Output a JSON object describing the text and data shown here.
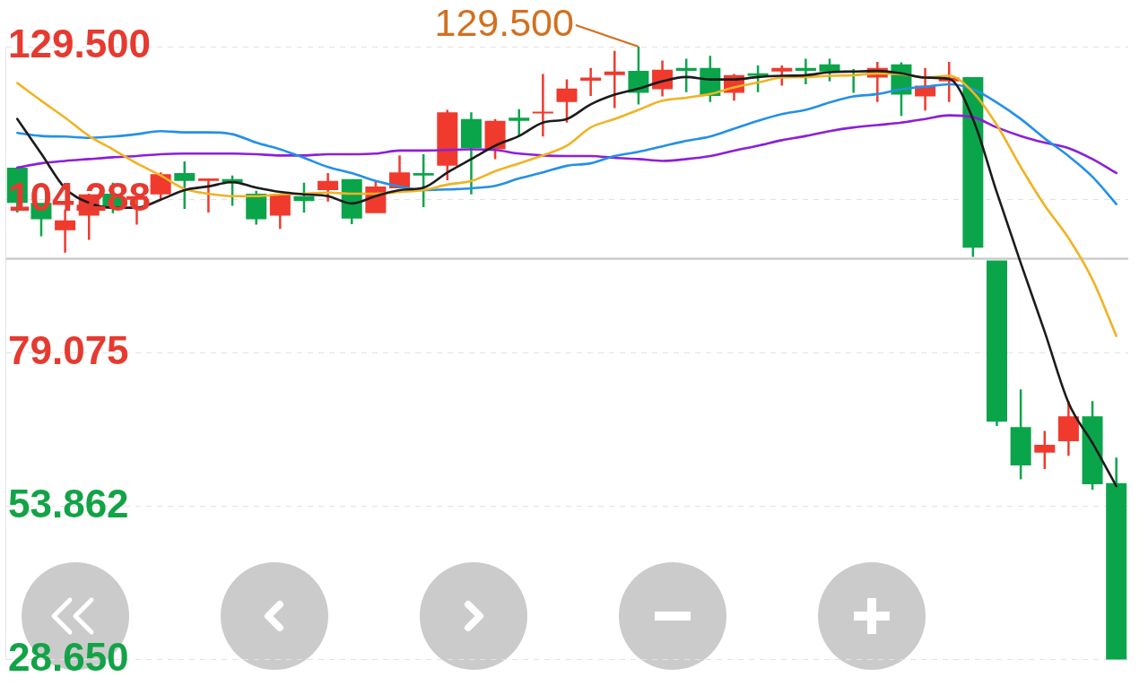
{
  "chart_data": {
    "type": "candlestick",
    "categories": [
      null,
      null,
      null,
      null,
      null,
      null,
      null,
      null,
      null,
      null,
      null,
      null,
      null,
      null,
      null,
      null,
      null,
      null,
      null,
      null,
      null,
      null,
      null,
      null,
      null,
      null,
      null,
      null,
      null,
      null,
      null,
      null,
      null,
      null,
      null,
      null,
      null,
      null,
      null,
      null,
      null,
      null,
      null,
      null,
      null,
      null,
      null
    ],
    "ohlc": [
      [
        109.6,
        109.6,
        102.2,
        103.8
      ],
      [
        103.8,
        103.8,
        98.3,
        101.1
      ],
      [
        99.3,
        102.7,
        95.6,
        100.9
      ],
      [
        101.7,
        105.3,
        97.7,
        105.2
      ],
      [
        105.3,
        107.1,
        102.1,
        103.0
      ],
      [
        104.3,
        104.9,
        100.2,
        104.9
      ],
      [
        105.2,
        108.8,
        104.4,
        108.5
      ],
      [
        108.7,
        110.6,
        102.8,
        107.4
      ],
      [
        107.4,
        107.8,
        102.2,
        107.8
      ],
      [
        107.7,
        108.3,
        103.3,
        107.1
      ],
      [
        105.3,
        105.8,
        100.2,
        101.1
      ],
      [
        101.7,
        105.2,
        99.5,
        105.2
      ],
      [
        104.9,
        107.1,
        102.2,
        104.1
      ],
      [
        105.9,
        108.7,
        104.0,
        107.4
      ],
      [
        107.7,
        107.7,
        100.3,
        101.2
      ],
      [
        102.1,
        107.5,
        102.1,
        106.5
      ],
      [
        106.2,
        111.6,
        106.2,
        108.8
      ],
      [
        108.7,
        111.8,
        103.1,
        108.3
      ],
      [
        109.9,
        119.1,
        107.5,
        118.7
      ],
      [
        117.6,
        118.7,
        105.2,
        112.8
      ],
      [
        112.6,
        117.6,
        111.0,
        117.3
      ],
      [
        117.8,
        119.2,
        114.8,
        117.3
      ],
      [
        118.5,
        125.0,
        114.7,
        118.8
      ],
      [
        120.4,
        124.1,
        117.0,
        122.6
      ],
      [
        123.9,
        126.0,
        121.4,
        124.4
      ],
      [
        124.8,
        128.8,
        119.4,
        125.4
      ],
      [
        125.5,
        129.5,
        120.0,
        121.9
      ],
      [
        122.5,
        127.2,
        121.3,
        125.7
      ],
      [
        126.0,
        127.5,
        122.0,
        125.5
      ],
      [
        126.0,
        128.0,
        120.4,
        121.4
      ],
      [
        121.9,
        125.0,
        120.6,
        124.8
      ],
      [
        125.1,
        126.4,
        122.0,
        124.7
      ],
      [
        125.4,
        126.4,
        123.1,
        126.0
      ],
      [
        126.0,
        127.5,
        123.3,
        125.5
      ],
      [
        126.6,
        127.5,
        123.8,
        125.4
      ],
      [
        125.5,
        125.8,
        121.9,
        125.3
      ],
      [
        124.4,
        127.0,
        120.4,
        126.0
      ],
      [
        126.6,
        126.9,
        118.1,
        121.6
      ],
      [
        121.3,
        126.0,
        119.0,
        123.1
      ],
      [
        123.8,
        127.0,
        120.4,
        124.4
      ],
      [
        124.5,
        124.5,
        94.9,
        96.4
      ],
      [
        94.3,
        94.3,
        67.1,
        67.8
      ],
      [
        66.9,
        73.1,
        58.3,
        60.6
      ],
      [
        62.7,
        66.3,
        60.0,
        64.0
      ],
      [
        64.6,
        71.2,
        62.2,
        68.7
      ],
      [
        68.7,
        71.2,
        56.6,
        57.5
      ],
      [
        57.7,
        61.9,
        28.65,
        28.65
      ]
    ],
    "colors": [
      "#0aa54a",
      "#0aa54a",
      "#f03a2e",
      "#f03a2e",
      "#0aa54a",
      "#f03a2e",
      "#f03a2e",
      "#0aa54a",
      "#f03a2e",
      "#0aa54a",
      "#0aa54a",
      "#f03a2e",
      "#0aa54a",
      "#f03a2e",
      "#0aa54a",
      "#f03a2e",
      "#f03a2e",
      "#0aa54a",
      "#f03a2e",
      "#0aa54a",
      "#f03a2e",
      "#0aa54a",
      "#f03a2e",
      "#f03a2e",
      "#f03a2e",
      "#f03a2e",
      "#0aa54a",
      "#f03a2e",
      "#0aa54a",
      "#0aa54a",
      "#f03a2e",
      "#0aa54a",
      "#f03a2e",
      "#0aa54a",
      "#0aa54a",
      "#0aa54a",
      "#f03a2e",
      "#0aa54a",
      "#f03a2e",
      "#f03a2e",
      "#0aa54a",
      "#0aa54a",
      "#0aa54a",
      "#f03a2e",
      "#f03a2e",
      "#0aa54a",
      "#0aa54a"
    ],
    "series": [
      {
        "type": "line",
        "color": "#1c1c1c",
        "values": [
          117.6,
          111.9,
          106.2,
          103.8,
          103.0,
          103.0,
          104.3,
          105.9,
          106.5,
          107.2,
          106.3,
          105.6,
          105.2,
          104.9,
          103.7,
          104.9,
          105.9,
          106.3,
          108.8,
          111.0,
          113.2,
          114.8,
          117.0,
          117.6,
          120.0,
          121.6,
          122.6,
          123.8,
          124.5,
          124.1,
          124.1,
          124.5,
          124.7,
          124.8,
          125.3,
          125.4,
          125.5,
          125.1,
          124.4,
          124.2,
          117.6,
          105.5,
          93.9,
          82.6,
          70.9,
          64.3,
          57.2
        ]
      },
      {
        "type": "line",
        "color": "#f0b323",
        "values": [
          123.5,
          120.6,
          117.8,
          114.8,
          112.6,
          110.3,
          108.3,
          106.1,
          105.3,
          104.9,
          104.9,
          105.2,
          105.3,
          105.5,
          105.3,
          105.3,
          105.6,
          105.9,
          106.8,
          107.4,
          109.0,
          110.3,
          111.6,
          113.2,
          116.2,
          117.6,
          119.1,
          120.6,
          121.1,
          121.7,
          122.8,
          123.6,
          124.4,
          124.5,
          124.7,
          124.8,
          125.1,
          125.0,
          124.4,
          124.7,
          122.0,
          116.6,
          109.7,
          103.4,
          98.0,
          91.2,
          81.9
        ]
      },
      {
        "type": "line",
        "color": "#2490e8",
        "values": [
          115.3,
          114.8,
          114.7,
          114.5,
          114.7,
          115.1,
          115.6,
          115.4,
          115.4,
          115.1,
          113.7,
          112.6,
          111.2,
          109.7,
          108.7,
          107.4,
          106.5,
          105.9,
          106.0,
          106.2,
          106.6,
          107.8,
          108.8,
          109.9,
          110.3,
          111.5,
          112.2,
          113.1,
          114.0,
          114.7,
          116.0,
          117.3,
          118.4,
          119.1,
          120.3,
          121.3,
          121.7,
          122.5,
          122.9,
          123.3,
          122.5,
          120.3,
          117.6,
          114.4,
          111.5,
          108.1,
          103.6
        ]
      },
      {
        "type": "line",
        "color": "#8c1fd9",
        "values": [
          109.6,
          110.3,
          110.7,
          111.0,
          111.3,
          111.5,
          111.8,
          111.9,
          111.9,
          111.9,
          111.8,
          111.6,
          111.6,
          111.8,
          111.8,
          111.9,
          112.4,
          112.4,
          112.5,
          112.6,
          112.5,
          111.9,
          111.6,
          111.5,
          111.5,
          111.2,
          111.0,
          110.7,
          111.0,
          111.5,
          112.4,
          113.2,
          114.1,
          114.8,
          115.6,
          116.2,
          116.6,
          117.0,
          117.6,
          118.2,
          117.9,
          116.2,
          114.8,
          113.7,
          112.8,
          111.0,
          108.7
        ]
      }
    ],
    "ylim": [
      28.65,
      129.5
    ],
    "yticks": [
      {
        "value": 129.5,
        "label": "129.500"
      },
      104.288,
      79.075,
      53.862,
      {
        "value": 28.65,
        "label": "28.650"
      }
    ],
    "grid": "y",
    "tick_labels": "y",
    "ref_lines": [
      {
        "axis": "y",
        "value": 94.6,
        "color": "#cccccc"
      }
    ],
    "annotations": [
      "129.500"
    ]
  }
}
